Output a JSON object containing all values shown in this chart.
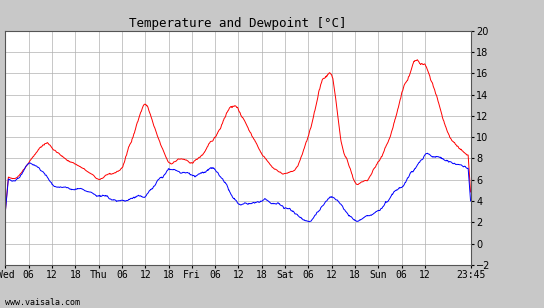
{
  "title": "Temperature and Dewpoint [°C]",
  "ylim": [
    -2,
    20
  ],
  "yticks": [
    -2,
    0,
    2,
    4,
    6,
    8,
    10,
    12,
    14,
    16,
    18,
    20
  ],
  "bg_color": "#c8c8c8",
  "plot_bg_color": "#ffffff",
  "temp_color": "red",
  "dew_color": "blue",
  "linewidth": 0.7,
  "watermark": "www.vaisala.com",
  "x_tick_labels": [
    "Wed",
    "06",
    "12",
    "18",
    "Thu",
    "06",
    "12",
    "18",
    "Fri",
    "06",
    "12",
    "18",
    "Sat",
    "06",
    "12",
    "18",
    "Sun",
    "06",
    "12",
    "23:45"
  ],
  "x_tick_positions": [
    0,
    6,
    12,
    18,
    24,
    30,
    36,
    42,
    48,
    54,
    60,
    66,
    72,
    78,
    84,
    90,
    96,
    102,
    108,
    119.75
  ],
  "xlim": [
    0,
    119.75
  ],
  "title_fontsize": 9,
  "tick_fontsize": 7,
  "watermark_fontsize": 6
}
